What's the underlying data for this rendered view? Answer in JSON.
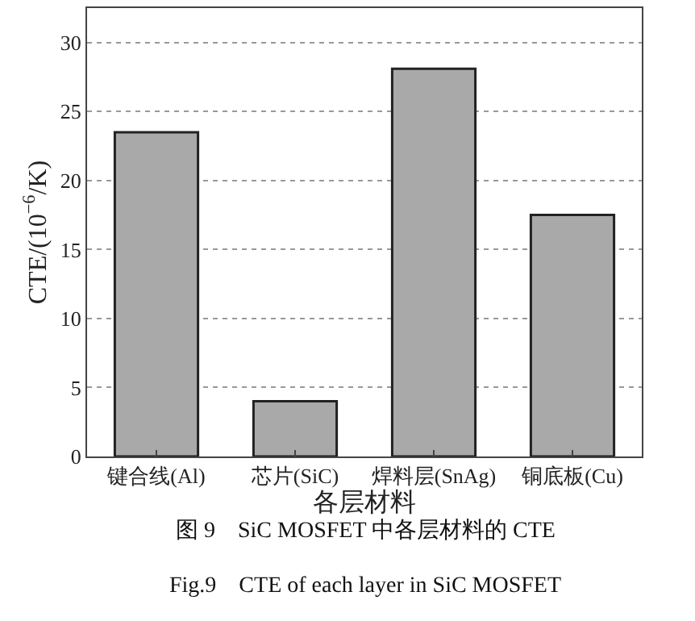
{
  "chart_data": {
    "type": "bar",
    "categories": [
      "键合线(Al)",
      "芯片(SiC)",
      "焊料层(SnAg)",
      "铜底板(Cu)"
    ],
    "values": [
      23.5,
      4.0,
      28.1,
      17.5
    ],
    "color": "#a9a9a9",
    "xlabel": "各层材料",
    "ylabel": "CTE/(10$^{−6}$/K)",
    "ylim": [
      0,
      32.5
    ],
    "yticks": [
      0,
      5,
      10,
      15,
      20,
      25,
      30
    ],
    "grid": "y",
    "annotations": [
      "图 9    SiC MOSFET 中各层材料的 CTE",
      "Fig.9    CTE of each layer in SiC MOSFET"
    ]
  }
}
